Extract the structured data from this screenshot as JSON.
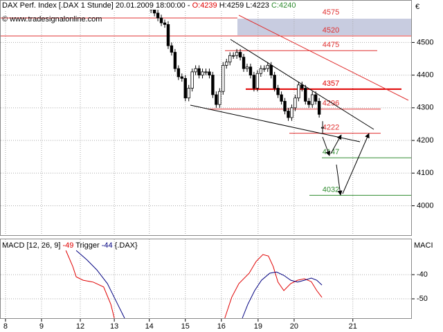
{
  "header": {
    "title": "DAX Perf. Index [.DAX  1 Stunde] 20.01.2009 18:00:00 -",
    "open": "O:4239",
    "high": "H:4259",
    "low": "L:4223",
    "close": "C:4240",
    "copyright": "© www.tradesignalonline.com",
    "currency": "€"
  },
  "chart_data": [
    {
      "type": "candlestick",
      "xlim": [
        0,
        120
      ],
      "ylim": [
        3910,
        4630
      ],
      "yticks": [
        4000,
        4100,
        4200,
        4300,
        4400,
        4500
      ],
      "grid": true,
      "up_color": "#ffffff",
      "down_color": "#000000",
      "x": [
        44,
        45,
        46,
        47,
        48,
        49,
        50,
        51,
        52,
        53,
        54,
        55,
        56,
        57,
        58,
        59,
        60,
        61,
        62,
        63,
        64,
        65,
        66,
        67,
        68,
        69,
        70,
        71,
        72,
        73,
        74,
        75,
        76,
        77,
        78,
        79,
        80,
        81,
        82,
        83,
        84,
        85,
        86,
        87,
        88,
        89,
        90,
        91,
        92,
        93,
        94
      ],
      "open": [
        4610,
        4600,
        4590,
        4575,
        4560,
        4555,
        4490,
        4470,
        4420,
        4395,
        4390,
        4330,
        4360,
        4410,
        4420,
        4400,
        4410,
        4410,
        4400,
        4340,
        4310,
        4350,
        4430,
        4440,
        4460,
        4460,
        4470,
        4455,
        4420,
        4425,
        4400,
        4360,
        4405,
        4420,
        4420,
        4430,
        4400,
        4360,
        4340,
        4320,
        4290,
        4270,
        4300,
        4330,
        4370,
        4360,
        4320,
        4310,
        4340,
        4320,
        4239
      ],
      "high": [
        4620,
        4610,
        4600,
        4585,
        4570,
        4565,
        4500,
        4480,
        4430,
        4405,
        4400,
        4370,
        4420,
        4430,
        4430,
        4420,
        4420,
        4420,
        4410,
        4350,
        4360,
        4440,
        4450,
        4470,
        4470,
        4480,
        4480,
        4465,
        4435,
        4435,
        4410,
        4415,
        4430,
        4430,
        4440,
        4440,
        4410,
        4370,
        4350,
        4330,
        4300,
        4310,
        4340,
        4380,
        4380,
        4370,
        4330,
        4350,
        4350,
        4330,
        4259
      ],
      "low": [
        4590,
        4580,
        4565,
        4550,
        4545,
        4480,
        4460,
        4410,
        4385,
        4380,
        4320,
        4320,
        4350,
        4400,
        4390,
        4390,
        4400,
        4390,
        4330,
        4300,
        4300,
        4340,
        4420,
        4430,
        4450,
        4450,
        4445,
        4410,
        4410,
        4390,
        4350,
        4350,
        4395,
        4410,
        4410,
        4390,
        4350,
        4330,
        4310,
        4280,
        4260,
        4260,
        4290,
        4320,
        4350,
        4310,
        4300,
        4300,
        4310,
        4270,
        4223
      ],
      "close": [
        4600,
        4590,
        4575,
        4560,
        4555,
        4490,
        4470,
        4420,
        4395,
        4390,
        4330,
        4360,
        4410,
        4420,
        4400,
        4410,
        4410,
        4400,
        4340,
        4310,
        4350,
        4430,
        4440,
        4460,
        4460,
        4470,
        4455,
        4420,
        4425,
        4400,
        4360,
        4405,
        4420,
        4420,
        4430,
        4400,
        4360,
        4340,
        4320,
        4290,
        4270,
        4300,
        4330,
        4370,
        4360,
        4320,
        4310,
        4340,
        4320,
        4280,
        4240
      ],
      "levels": [
        {
          "value": 4575,
          "color": "#e03030"
        },
        {
          "value": 4520,
          "color": "#e03030"
        },
        {
          "value": 4475,
          "color": "#e03030"
        },
        {
          "value": 4357,
          "color": "#e00000"
        },
        {
          "value": 4296,
          "color": "#e03030"
        },
        {
          "value": 4222,
          "color": "#e03030"
        },
        {
          "value": 4147,
          "color": "#2e8b2e"
        },
        {
          "value": 4032,
          "color": "#2e8b2e"
        }
      ]
    },
    {
      "type": "line",
      "title": "MACD [12, 26, 9]",
      "macd_label": "-49",
      "trigger_title": "Trigger",
      "trigger_label": "-44",
      "symbol": "{.DAX}",
      "axis_label": "MACI",
      "xlim": [
        0,
        120
      ],
      "ylim": [
        -58,
        -25.1
      ],
      "yticks": [
        -40,
        -50
      ],
      "grid": true,
      "xticks": [
        {
          "value": 1.6,
          "label": "8"
        },
        {
          "value": 12.1,
          "label": "9"
        },
        {
          "value": 23.4,
          "label": "12"
        },
        {
          "value": 33.3,
          "label": "13"
        },
        {
          "value": 43.5,
          "label": "14"
        },
        {
          "value": 54,
          "label": "15"
        },
        {
          "value": 64.5,
          "label": "16"
        },
        {
          "value": 75.2,
          "label": "19"
        },
        {
          "value": 85.7,
          "label": "20"
        },
        {
          "value": 102.8,
          "label": "21"
        }
      ],
      "series": [
        {
          "name": "MACD",
          "color": "#e00000",
          "x": [
            19.2,
            21.2,
            22.2,
            24.2,
            27.2,
            30.2,
            32.3,
            33.3,
            null,
            65.5,
            67.5,
            69.6,
            72.6,
            74.6,
            76.6,
            78.2,
            79.6,
            81.0,
            82.7,
            84.7,
            86.7,
            88.7,
            90.7,
            92.3,
            93.8
          ],
          "values": [
            -30,
            -36.6,
            -40.9,
            -42.3,
            -43.1,
            -45.1,
            -52.3,
            -58,
            null,
            -58,
            -49.4,
            -43.7,
            -39.4,
            -34.6,
            -31.7,
            -32.3,
            -36.6,
            -43.1,
            -46.6,
            -43.7,
            -42.3,
            -41.7,
            -42.9,
            -46.6,
            -49.4
          ]
        },
        {
          "name": "Trigger",
          "color": "#000080",
          "x": [
            22.2,
            25.2,
            28.2,
            31.3,
            34.3,
            36.3,
            null,
            70.6,
            72.2,
            74.2,
            76.2,
            78.6,
            80.6,
            82.7,
            84.7,
            86.7,
            88.7,
            90.7,
            92.3,
            93.8
          ],
          "values": [
            -30,
            -33.7,
            -38,
            -43.7,
            -52.3,
            -58,
            null,
            -58,
            -52.3,
            -46.6,
            -42.3,
            -39.4,
            -38.9,
            -40.3,
            -42.3,
            -43.1,
            -42.3,
            -41.4,
            -42.3,
            -44.3
          ]
        }
      ]
    }
  ]
}
